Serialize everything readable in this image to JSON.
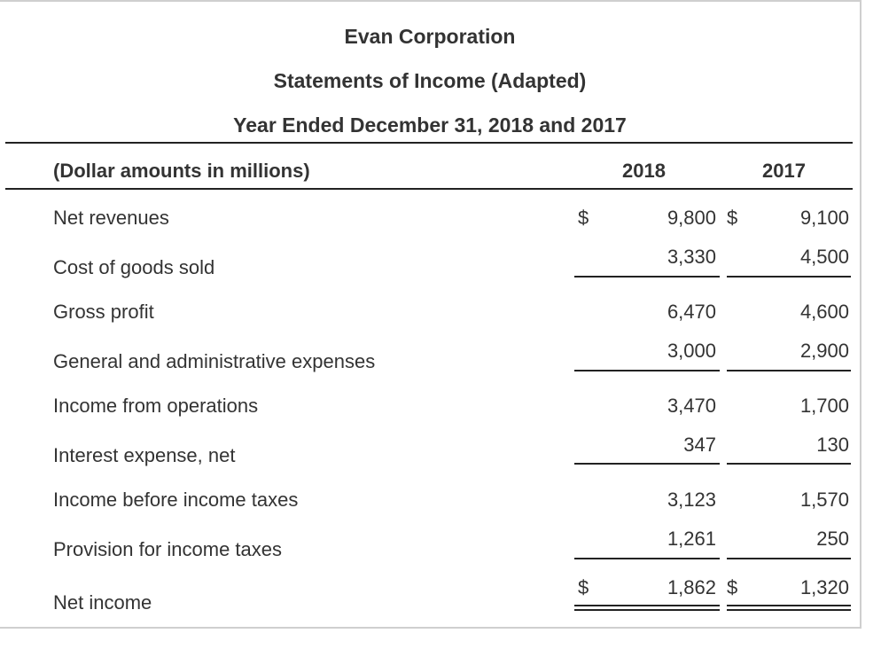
{
  "header": {
    "company": "Evan Corporation",
    "statement": "Statements of Income (Adapted)",
    "period": "Year Ended December 31, 2018 and 2017"
  },
  "table": {
    "unit_label": "(Dollar amounts in millions)",
    "col_2018": "2018",
    "col_2017": "2017",
    "currency_symbol": "$",
    "rows": [
      {
        "label": "Net revenues",
        "v2018": "9,800",
        "v2017": "9,100"
      },
      {
        "label": "Cost of goods sold",
        "v2018": "3,330",
        "v2017": "4,500"
      },
      {
        "label": "Gross profit",
        "v2018": "6,470",
        "v2017": "4,600"
      },
      {
        "label": "General and administrative expenses",
        "v2018": "3,000",
        "v2017": "2,900"
      },
      {
        "label": "Income from operations",
        "v2018": "3,470",
        "v2017": "1,700"
      },
      {
        "label": "Interest expense, net",
        "v2018": "347",
        "v2017": "130"
      },
      {
        "label": "Income before income taxes",
        "v2018": "3,123",
        "v2017": "1,570"
      },
      {
        "label": "Provision for income taxes",
        "v2018": "1,261",
        "v2017": "250"
      },
      {
        "label": "Net income",
        "v2018": "1,862",
        "v2017": "1,320"
      }
    ]
  }
}
